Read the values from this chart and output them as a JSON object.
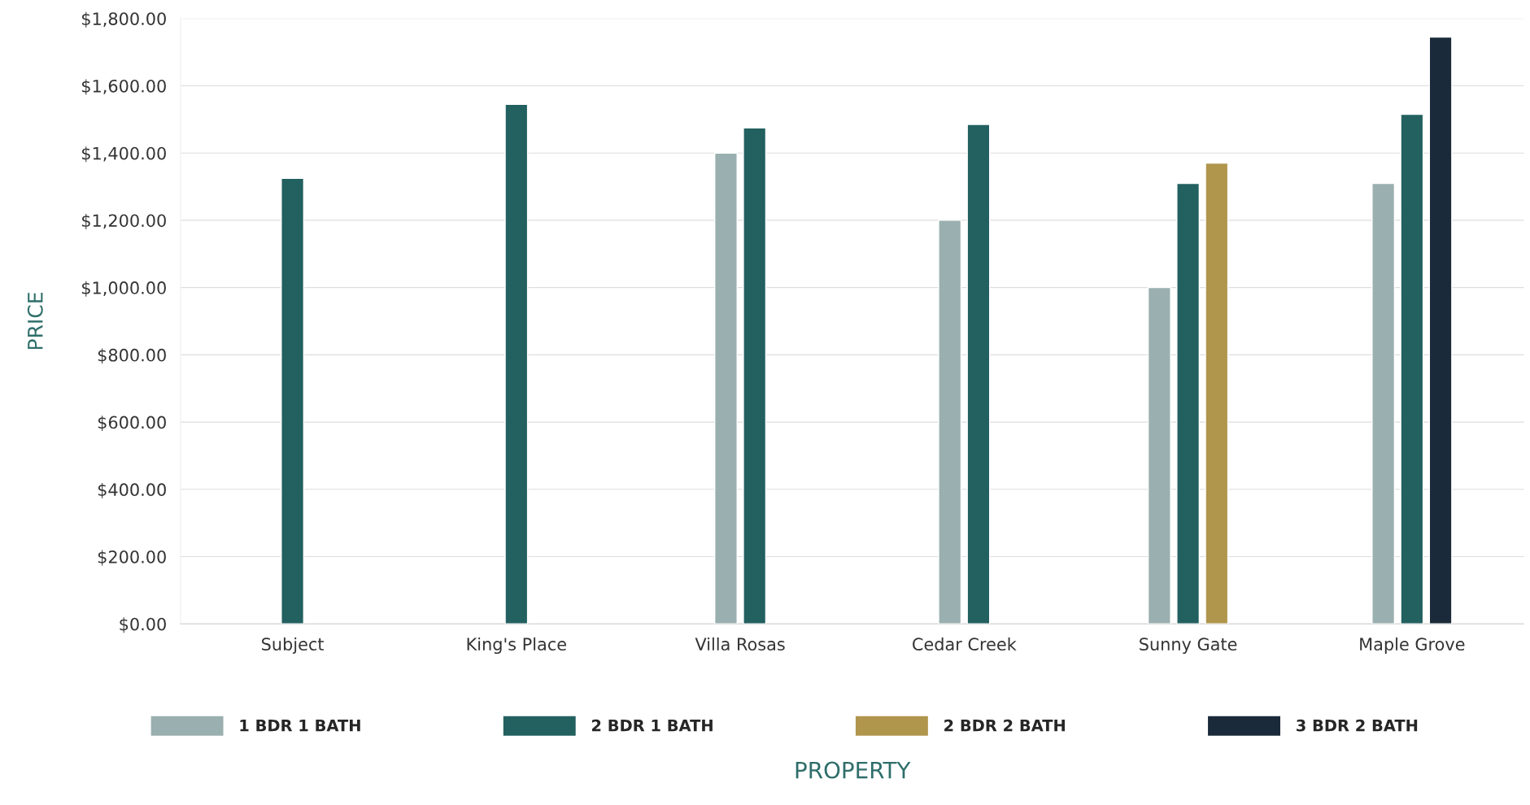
{
  "chart_data": {
    "type": "bar",
    "xlabel": "PROPERTY",
    "ylabel": "PRICE",
    "categories": [
      "Subject",
      "King's Place",
      "Villa Rosas",
      "Cedar Creek",
      "Sunny Gate",
      "Maple Grove"
    ],
    "series": [
      {
        "name": "1 BDR 1 BATH",
        "color": "#9aafaf",
        "values": [
          null,
          null,
          1400,
          1200,
          1000,
          1310
        ]
      },
      {
        "name": "2 BDR 1 BATH",
        "color": "#236060",
        "values": [
          1325,
          1545,
          1475,
          1485,
          1310,
          1515
        ]
      },
      {
        "name": "2 BDR 2 BATH",
        "color": "#b0954d",
        "values": [
          null,
          null,
          null,
          null,
          1370,
          null
        ]
      },
      {
        "name": "3 BDR 2 BATH",
        "color": "#1a2a3a",
        "values": [
          null,
          null,
          null,
          null,
          null,
          1745
        ]
      }
    ],
    "ylim": [
      0,
      1800
    ],
    "yticks": [
      {
        "value": 0,
        "label": "$0.00"
      },
      {
        "value": 200,
        "label": "$200.00"
      },
      {
        "value": 400,
        "label": "$400.00"
      },
      {
        "value": 600,
        "label": "$600.00"
      },
      {
        "value": 800,
        "label": "$800.00"
      },
      {
        "value": 1000,
        "label": "$1,000.00"
      },
      {
        "value": 1200,
        "label": "$1,200.00"
      },
      {
        "value": 1400,
        "label": "$1,400.00"
      },
      {
        "value": 1600,
        "label": "$1,600.00"
      },
      {
        "value": 1800,
        "label": "$1,800.00"
      }
    ],
    "grid": "y",
    "legend": "bottom"
  }
}
